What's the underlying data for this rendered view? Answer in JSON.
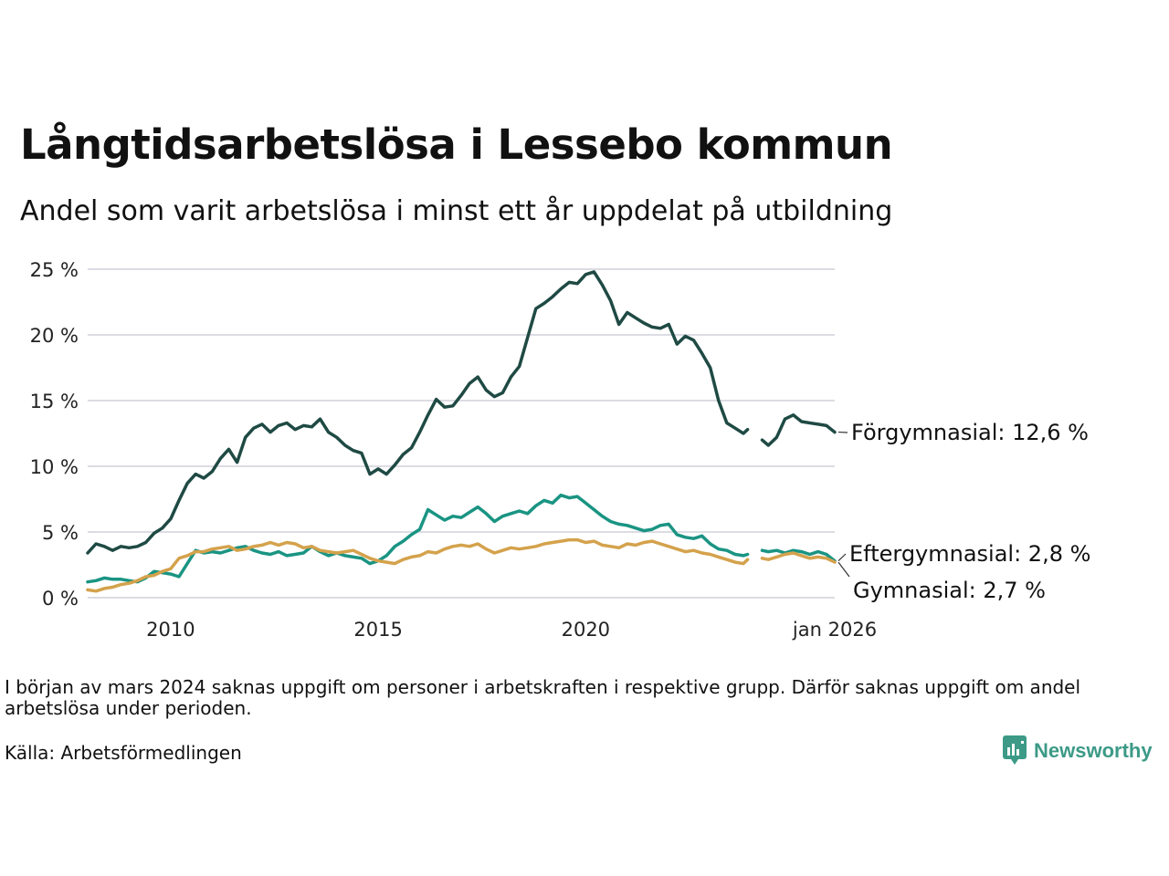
{
  "header": {
    "title": "Långtidsarbetslösa i Lessebo kommun",
    "subtitle": "Andel som varit arbetslösa i minst ett år uppdelat på utbildning"
  },
  "footer": {
    "note": "I början av mars 2024 saknas uppgift om personer i arbetskraften i respektive grupp. Därför saknas uppgift om andel arbetslösa under perioden.",
    "source": "Källa: Arbetsförmedlingen",
    "brand": "Newsworthy"
  },
  "colors": {
    "forgymnasial": "#1f4a44",
    "eftergymnasial": "#1a9483",
    "gymnasial": "#d4a24c",
    "grid": "#dcdce4",
    "brand": "#3c9a87"
  },
  "chart_data": {
    "type": "line",
    "title": "Långtidsarbetslösa i Lessebo kommun",
    "subtitle": "Andel som varit arbetslösa i minst ett år uppdelat på utbildning",
    "xlabel": "",
    "ylabel": "",
    "x_range": [
      2008.0,
      2026.0
    ],
    "ylim": [
      0,
      25
    ],
    "y_ticks": [
      0,
      5,
      10,
      15,
      20,
      25
    ],
    "y_tick_labels": [
      "0 %",
      "5 %",
      "10 %",
      "15 %",
      "20 %",
      "25 %"
    ],
    "x_ticks": [
      2010,
      2015,
      2020,
      2026
    ],
    "x_tick_labels": [
      "2010",
      "2015",
      "2020",
      "jan 2026"
    ],
    "grid": true,
    "gap": [
      2023.9,
      2024.25
    ],
    "series": [
      {
        "name": "Förgymnasial",
        "color_key": "forgymnasial",
        "end_label": "Förgymnasial: 12,6 %",
        "points": [
          [
            2008.0,
            3.4
          ],
          [
            2008.2,
            4.1
          ],
          [
            2008.4,
            3.9
          ],
          [
            2008.6,
            3.6
          ],
          [
            2008.8,
            3.9
          ],
          [
            2009.0,
            3.8
          ],
          [
            2009.2,
            3.9
          ],
          [
            2009.4,
            4.2
          ],
          [
            2009.6,
            4.9
          ],
          [
            2009.8,
            5.3
          ],
          [
            2010.0,
            6.0
          ],
          [
            2010.2,
            7.4
          ],
          [
            2010.4,
            8.7
          ],
          [
            2010.6,
            9.4
          ],
          [
            2010.8,
            9.1
          ],
          [
            2011.0,
            9.6
          ],
          [
            2011.2,
            10.6
          ],
          [
            2011.4,
            11.3
          ],
          [
            2011.6,
            10.3
          ],
          [
            2011.8,
            12.2
          ],
          [
            2012.0,
            12.9
          ],
          [
            2012.2,
            13.2
          ],
          [
            2012.4,
            12.6
          ],
          [
            2012.6,
            13.1
          ],
          [
            2012.8,
            13.3
          ],
          [
            2013.0,
            12.8
          ],
          [
            2013.2,
            13.1
          ],
          [
            2013.4,
            13.0
          ],
          [
            2013.6,
            13.6
          ],
          [
            2013.8,
            12.6
          ],
          [
            2014.0,
            12.2
          ],
          [
            2014.2,
            11.6
          ],
          [
            2014.4,
            11.2
          ],
          [
            2014.6,
            11.0
          ],
          [
            2014.8,
            9.4
          ],
          [
            2015.0,
            9.8
          ],
          [
            2015.2,
            9.4
          ],
          [
            2015.4,
            10.1
          ],
          [
            2015.6,
            10.9
          ],
          [
            2015.8,
            11.4
          ],
          [
            2016.0,
            12.6
          ],
          [
            2016.2,
            13.9
          ],
          [
            2016.4,
            15.1
          ],
          [
            2016.6,
            14.5
          ],
          [
            2016.8,
            14.6
          ],
          [
            2017.0,
            15.4
          ],
          [
            2017.2,
            16.3
          ],
          [
            2017.4,
            16.8
          ],
          [
            2017.6,
            15.8
          ],
          [
            2017.8,
            15.3
          ],
          [
            2018.0,
            15.6
          ],
          [
            2018.2,
            16.8
          ],
          [
            2018.4,
            17.6
          ],
          [
            2018.6,
            19.8
          ],
          [
            2018.8,
            22.0
          ],
          [
            2019.0,
            22.4
          ],
          [
            2019.2,
            22.9
          ],
          [
            2019.4,
            23.5
          ],
          [
            2019.6,
            24.0
          ],
          [
            2019.8,
            23.9
          ],
          [
            2020.0,
            24.6
          ],
          [
            2020.2,
            24.8
          ],
          [
            2020.4,
            23.8
          ],
          [
            2020.6,
            22.6
          ],
          [
            2020.8,
            20.8
          ],
          [
            2021.0,
            21.7
          ],
          [
            2021.2,
            21.3
          ],
          [
            2021.4,
            20.9
          ],
          [
            2021.6,
            20.6
          ],
          [
            2021.8,
            20.5
          ],
          [
            2022.0,
            20.8
          ],
          [
            2022.2,
            19.3
          ],
          [
            2022.4,
            19.9
          ],
          [
            2022.6,
            19.6
          ],
          [
            2022.8,
            18.6
          ],
          [
            2023.0,
            17.5
          ],
          [
            2023.2,
            15.0
          ],
          [
            2023.4,
            13.3
          ],
          [
            2023.6,
            12.9
          ],
          [
            2023.8,
            12.5
          ],
          [
            2023.9,
            12.8
          ],
          [
            2024.25,
            12.0
          ],
          [
            2024.4,
            11.6
          ],
          [
            2024.6,
            12.2
          ],
          [
            2024.8,
            13.6
          ],
          [
            2025.0,
            13.9
          ],
          [
            2025.2,
            13.4
          ],
          [
            2025.4,
            13.3
          ],
          [
            2025.6,
            13.2
          ],
          [
            2025.8,
            13.1
          ],
          [
            2026.0,
            12.6
          ]
        ]
      },
      {
        "name": "Eftergymnasial",
        "color_key": "eftergymnasial",
        "end_label": "Eftergymnasial:  2,8 %",
        "points": [
          [
            2008.0,
            1.2
          ],
          [
            2008.2,
            1.3
          ],
          [
            2008.4,
            1.5
          ],
          [
            2008.6,
            1.4
          ],
          [
            2008.8,
            1.4
          ],
          [
            2009.0,
            1.3
          ],
          [
            2009.2,
            1.2
          ],
          [
            2009.4,
            1.5
          ],
          [
            2009.6,
            2.0
          ],
          [
            2009.8,
            1.9
          ],
          [
            2010.0,
            1.8
          ],
          [
            2010.2,
            1.6
          ],
          [
            2010.4,
            2.6
          ],
          [
            2010.6,
            3.6
          ],
          [
            2010.8,
            3.4
          ],
          [
            2011.0,
            3.5
          ],
          [
            2011.2,
            3.4
          ],
          [
            2011.4,
            3.6
          ],
          [
            2011.6,
            3.8
          ],
          [
            2011.8,
            3.9
          ],
          [
            2012.0,
            3.6
          ],
          [
            2012.2,
            3.4
          ],
          [
            2012.4,
            3.3
          ],
          [
            2012.6,
            3.5
          ],
          [
            2012.8,
            3.2
          ],
          [
            2013.0,
            3.3
          ],
          [
            2013.2,
            3.4
          ],
          [
            2013.4,
            3.9
          ],
          [
            2013.6,
            3.5
          ],
          [
            2013.8,
            3.2
          ],
          [
            2014.0,
            3.4
          ],
          [
            2014.2,
            3.2
          ],
          [
            2014.4,
            3.1
          ],
          [
            2014.6,
            3.0
          ],
          [
            2014.8,
            2.6
          ],
          [
            2015.0,
            2.8
          ],
          [
            2015.2,
            3.2
          ],
          [
            2015.4,
            3.9
          ],
          [
            2015.6,
            4.3
          ],
          [
            2015.8,
            4.8
          ],
          [
            2016.0,
            5.2
          ],
          [
            2016.2,
            6.7
          ],
          [
            2016.4,
            6.3
          ],
          [
            2016.6,
            5.9
          ],
          [
            2016.8,
            6.2
          ],
          [
            2017.0,
            6.1
          ],
          [
            2017.2,
            6.5
          ],
          [
            2017.4,
            6.9
          ],
          [
            2017.6,
            6.4
          ],
          [
            2017.8,
            5.8
          ],
          [
            2018.0,
            6.2
          ],
          [
            2018.2,
            6.4
          ],
          [
            2018.4,
            6.6
          ],
          [
            2018.6,
            6.4
          ],
          [
            2018.8,
            7.0
          ],
          [
            2019.0,
            7.4
          ],
          [
            2019.2,
            7.2
          ],
          [
            2019.4,
            7.8
          ],
          [
            2019.6,
            7.6
          ],
          [
            2019.8,
            7.7
          ],
          [
            2020.0,
            7.2
          ],
          [
            2020.2,
            6.7
          ],
          [
            2020.4,
            6.2
          ],
          [
            2020.6,
            5.8
          ],
          [
            2020.8,
            5.6
          ],
          [
            2021.0,
            5.5
          ],
          [
            2021.2,
            5.3
          ],
          [
            2021.4,
            5.1
          ],
          [
            2021.6,
            5.2
          ],
          [
            2021.8,
            5.5
          ],
          [
            2022.0,
            5.6
          ],
          [
            2022.2,
            4.8
          ],
          [
            2022.4,
            4.6
          ],
          [
            2022.6,
            4.5
          ],
          [
            2022.8,
            4.7
          ],
          [
            2023.0,
            4.1
          ],
          [
            2023.2,
            3.7
          ],
          [
            2023.4,
            3.6
          ],
          [
            2023.6,
            3.3
          ],
          [
            2023.8,
            3.2
          ],
          [
            2023.9,
            3.3
          ],
          [
            2024.25,
            3.6
          ],
          [
            2024.4,
            3.5
          ],
          [
            2024.6,
            3.6
          ],
          [
            2024.8,
            3.4
          ],
          [
            2025.0,
            3.6
          ],
          [
            2025.2,
            3.5
          ],
          [
            2025.4,
            3.3
          ],
          [
            2025.6,
            3.5
          ],
          [
            2025.8,
            3.3
          ],
          [
            2026.0,
            2.8
          ]
        ]
      },
      {
        "name": "Gymnasial",
        "color_key": "gymnasial",
        "end_label": "Gymnasial:  2,7 %",
        "points": [
          [
            2008.0,
            0.6
          ],
          [
            2008.2,
            0.5
          ],
          [
            2008.4,
            0.7
          ],
          [
            2008.6,
            0.8
          ],
          [
            2008.8,
            1.0
          ],
          [
            2009.0,
            1.1
          ],
          [
            2009.2,
            1.3
          ],
          [
            2009.4,
            1.6
          ],
          [
            2009.6,
            1.7
          ],
          [
            2009.8,
            2.0
          ],
          [
            2010.0,
            2.2
          ],
          [
            2010.2,
            3.0
          ],
          [
            2010.4,
            3.2
          ],
          [
            2010.6,
            3.5
          ],
          [
            2010.8,
            3.5
          ],
          [
            2011.0,
            3.7
          ],
          [
            2011.2,
            3.8
          ],
          [
            2011.4,
            3.9
          ],
          [
            2011.6,
            3.6
          ],
          [
            2011.8,
            3.7
          ],
          [
            2012.0,
            3.9
          ],
          [
            2012.2,
            4.0
          ],
          [
            2012.4,
            4.2
          ],
          [
            2012.6,
            4.0
          ],
          [
            2012.8,
            4.2
          ],
          [
            2013.0,
            4.1
          ],
          [
            2013.2,
            3.8
          ],
          [
            2013.4,
            3.9
          ],
          [
            2013.6,
            3.6
          ],
          [
            2013.8,
            3.5
          ],
          [
            2014.0,
            3.4
          ],
          [
            2014.2,
            3.5
          ],
          [
            2014.4,
            3.6
          ],
          [
            2014.6,
            3.3
          ],
          [
            2014.8,
            3.0
          ],
          [
            2015.0,
            2.8
          ],
          [
            2015.2,
            2.7
          ],
          [
            2015.4,
            2.6
          ],
          [
            2015.6,
            2.9
          ],
          [
            2015.8,
            3.1
          ],
          [
            2016.0,
            3.2
          ],
          [
            2016.2,
            3.5
          ],
          [
            2016.4,
            3.4
          ],
          [
            2016.6,
            3.7
          ],
          [
            2016.8,
            3.9
          ],
          [
            2017.0,
            4.0
          ],
          [
            2017.2,
            3.9
          ],
          [
            2017.4,
            4.1
          ],
          [
            2017.6,
            3.7
          ],
          [
            2017.8,
            3.4
          ],
          [
            2018.0,
            3.6
          ],
          [
            2018.2,
            3.8
          ],
          [
            2018.4,
            3.7
          ],
          [
            2018.6,
            3.8
          ],
          [
            2018.8,
            3.9
          ],
          [
            2019.0,
            4.1
          ],
          [
            2019.2,
            4.2
          ],
          [
            2019.4,
            4.3
          ],
          [
            2019.6,
            4.4
          ],
          [
            2019.8,
            4.4
          ],
          [
            2020.0,
            4.2
          ],
          [
            2020.2,
            4.3
          ],
          [
            2020.4,
            4.0
          ],
          [
            2020.6,
            3.9
          ],
          [
            2020.8,
            3.8
          ],
          [
            2021.0,
            4.1
          ],
          [
            2021.2,
            4.0
          ],
          [
            2021.4,
            4.2
          ],
          [
            2021.6,
            4.3
          ],
          [
            2021.8,
            4.1
          ],
          [
            2022.0,
            3.9
          ],
          [
            2022.2,
            3.7
          ],
          [
            2022.4,
            3.5
          ],
          [
            2022.6,
            3.6
          ],
          [
            2022.8,
            3.4
          ],
          [
            2023.0,
            3.3
          ],
          [
            2023.2,
            3.1
          ],
          [
            2023.4,
            2.9
          ],
          [
            2023.6,
            2.7
          ],
          [
            2023.8,
            2.6
          ],
          [
            2023.9,
            2.9
          ],
          [
            2024.25,
            3.0
          ],
          [
            2024.4,
            2.9
          ],
          [
            2024.6,
            3.1
          ],
          [
            2024.8,
            3.3
          ],
          [
            2025.0,
            3.4
          ],
          [
            2025.2,
            3.2
          ],
          [
            2025.4,
            3.0
          ],
          [
            2025.6,
            3.1
          ],
          [
            2025.8,
            3.0
          ],
          [
            2026.0,
            2.7
          ]
        ]
      }
    ]
  }
}
